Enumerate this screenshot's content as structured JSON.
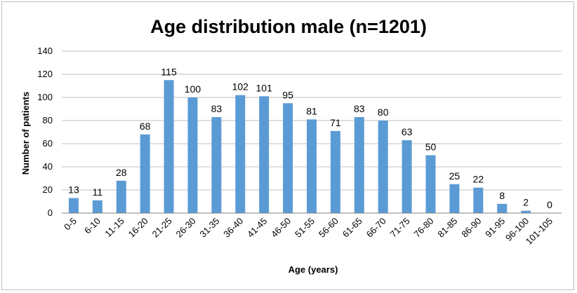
{
  "chart_data": {
    "type": "bar",
    "title": "Age distribution male (n=1201)",
    "xlabel": "Age (years)",
    "ylabel": "Number of patients",
    "ylim": [
      0,
      140
    ],
    "yticks": [
      0,
      20,
      40,
      60,
      80,
      100,
      120,
      140
    ],
    "grid": true,
    "legend": "none",
    "bar_color": "#5b9bd5",
    "categories": [
      "0-5",
      "6-10",
      "11-15",
      "16-20",
      "21-25",
      "26-30",
      "31-35",
      "36-40",
      "41-45",
      "46-50",
      "51-55",
      "56-60",
      "61-65",
      "66-70",
      "71-75",
      "76-80",
      "81-85",
      "86-90",
      "91-95",
      "96-100",
      "101-105"
    ],
    "values": [
      13,
      11,
      28,
      68,
      115,
      100,
      83,
      102,
      101,
      95,
      81,
      71,
      83,
      80,
      63,
      50,
      25,
      22,
      8,
      2,
      0
    ]
  }
}
